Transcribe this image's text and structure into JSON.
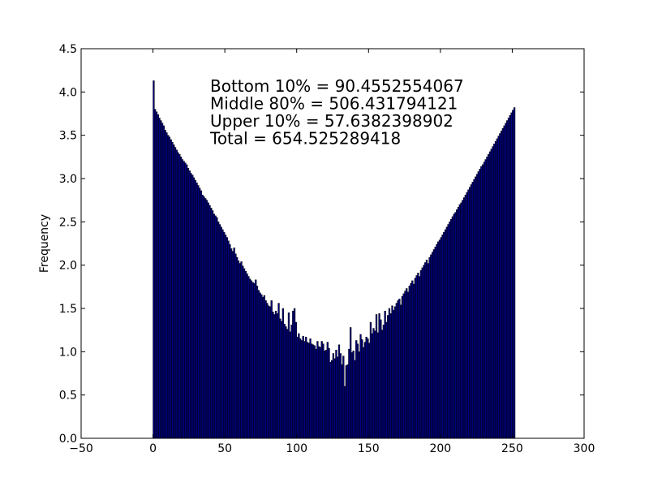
{
  "chart_data": {
    "type": "bar",
    "title": "",
    "xlabel": "",
    "ylabel": "Frequency",
    "xlim": [
      -50,
      300
    ],
    "ylim": [
      0,
      4.5
    ],
    "xticks": [
      "−50",
      "0",
      "50",
      "100",
      "150",
      "200",
      "250",
      "300"
    ],
    "xtick_values": [
      -50,
      0,
      50,
      100,
      150,
      200,
      250,
      300
    ],
    "yticks": [
      "0.0",
      "0.5",
      "1.0",
      "1.5",
      "2.0",
      "2.5",
      "3.0",
      "3.5",
      "4.0",
      "4.5"
    ],
    "ytick_values": [
      0,
      0.5,
      1.0,
      1.5,
      2.0,
      2.5,
      3.0,
      3.5,
      4.0,
      4.5
    ],
    "grid": false,
    "bar_color": "#000080",
    "edge_color": "#000000",
    "bin_start": 0,
    "bin_width": 1,
    "annotations": [
      "Bottom 10% = 90.4552554067",
      "Middle 80% = 506.431794121",
      "Upper 10% = 57.6382398902",
      "Total = 654.525289418"
    ],
    "values": [
      4.13,
      3.8,
      3.77,
      3.74,
      3.7,
      3.67,
      3.64,
      3.61,
      3.56,
      3.53,
      3.5,
      3.48,
      3.45,
      3.42,
      3.39,
      3.36,
      3.33,
      3.3,
      3.28,
      3.25,
      3.22,
      3.2,
      3.18,
      3.16,
      3.12,
      3.09,
      3.06,
      3.04,
      3.01,
      2.98,
      2.95,
      2.92,
      2.89,
      2.86,
      2.81,
      2.79,
      2.77,
      2.75,
      2.72,
      2.69,
      2.66,
      2.63,
      2.59,
      2.57,
      2.55,
      2.5,
      2.47,
      2.44,
      2.41,
      2.38,
      2.35,
      2.32,
      2.28,
      2.24,
      2.19,
      2.16,
      2.2,
      2.13,
      2.09,
      2.05,
      2.02,
      2.04,
      1.99,
      1.96,
      1.93,
      1.9,
      1.87,
      1.84,
      1.82,
      1.8,
      1.79,
      1.83,
      1.76,
      1.71,
      1.68,
      1.66,
      1.63,
      1.65,
      1.59,
      1.56,
      1.53,
      1.52,
      1.59,
      1.46,
      1.43,
      1.47,
      1.44,
      1.56,
      1.38,
      1.35,
      1.5,
      1.32,
      1.29,
      1.26,
      1.45,
      1.23,
      1.31,
      1.47,
      1.5,
      1.34,
      1.17,
      1.21,
      1.15,
      1.13,
      1.18,
      1.12,
      1.17,
      1.11,
      1.1,
      1.15,
      1.09,
      1.08,
      1.07,
      1.03,
      1.12,
      1.06,
      1.05,
      1.12,
      1.09,
      1.01,
      1.02,
      1.11,
      1.04,
      0.88,
      0.9,
      0.98,
      0.92,
      1.02,
      0.94,
      1.08,
      0.98,
      0.85,
      0.95,
      0.6,
      0.84,
      0.85,
      1.03,
      1.28,
      0.99,
      1.01,
      0.9,
      1.13,
      1.09,
      1.0,
      1.2,
      1.14,
      1.05,
      1.11,
      1.17,
      1.15,
      1.1,
      1.34,
      1.21,
      1.27,
      1.24,
      1.43,
      1.22,
      1.44,
      1.37,
      1.25,
      1.31,
      1.47,
      1.34,
      1.42,
      1.5,
      1.44,
      1.53,
      1.48,
      1.52,
      1.56,
      1.59,
      1.61,
      1.54,
      1.64,
      1.67,
      1.7,
      1.73,
      1.69,
      1.76,
      1.79,
      1.82,
      1.78,
      1.85,
      1.88,
      1.91,
      1.87,
      1.94,
      1.97,
      2.0,
      2.03,
      2.06,
      2.02,
      2.09,
      2.12,
      2.15,
      2.18,
      2.21,
      2.24,
      2.27,
      2.29,
      2.32,
      2.35,
      2.38,
      2.41,
      2.44,
      2.47,
      2.5,
      2.53,
      2.56,
      2.59,
      2.61,
      2.64,
      2.67,
      2.7,
      2.72,
      2.75,
      2.78,
      2.81,
      2.84,
      2.87,
      2.9,
      2.93,
      2.96,
      2.99,
      3.02,
      3.05,
      3.08,
      3.11,
      3.14,
      3.16,
      3.19,
      3.22,
      3.25,
      3.28,
      3.31,
      3.34,
      3.37,
      3.4,
      3.43,
      3.46,
      3.49,
      3.52,
      3.55,
      3.58,
      3.61,
      3.64,
      3.67,
      3.7,
      3.73,
      3.76,
      3.79,
      3.82
    ]
  }
}
